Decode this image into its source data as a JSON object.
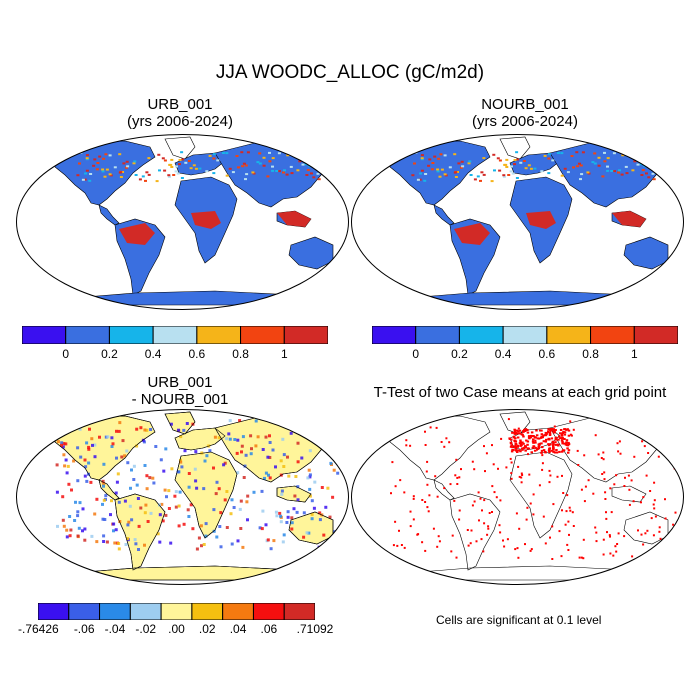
{
  "main_title": "JJA WOODC_ALLOC (gC/m2d)",
  "panels": {
    "p1": {
      "title_line1": "URB_001",
      "title_line2": "(yrs 2006-2024)"
    },
    "p2": {
      "title_line1": "NOURB_001",
      "title_line2": "(yrs 2006-2024)"
    },
    "p3": {
      "title_line1": "URB_001",
      "title_line2": "- NOURB_001"
    },
    "p4": {
      "title_line1": "T-Test of two Case means at each grid point",
      "note": "Cells are significant at 0.1 level"
    }
  },
  "colorbar_top": {
    "colors": [
      "#3a10f0",
      "#3a6fe0",
      "#16b4ea",
      "#b8e0f0",
      "#f5b419",
      "#f24411",
      "#d22a26"
    ],
    "labels": [
      "0",
      "0.2",
      "0.4",
      "0.6",
      "0.8",
      "1"
    ]
  },
  "colorbar_diff": {
    "colors": [
      "#3a10f0",
      "#3a5fe8",
      "#2a8ae8",
      "#9ecdf0",
      "#fff59a",
      "#f5c010",
      "#f57a10",
      "#f50f0f",
      "#d22a26"
    ],
    "labels": [
      "-.76426",
      "-.06",
      "-.04",
      "-.02",
      ".00",
      ".02",
      ".04",
      ".06",
      ".71092"
    ]
  },
  "map_colors": {
    "ocean": "#ffffff",
    "land_base": "#3a6fe0",
    "tropical_high": "#d22a26",
    "diff_base": "#fff59a",
    "signif": "#ff0000"
  }
}
